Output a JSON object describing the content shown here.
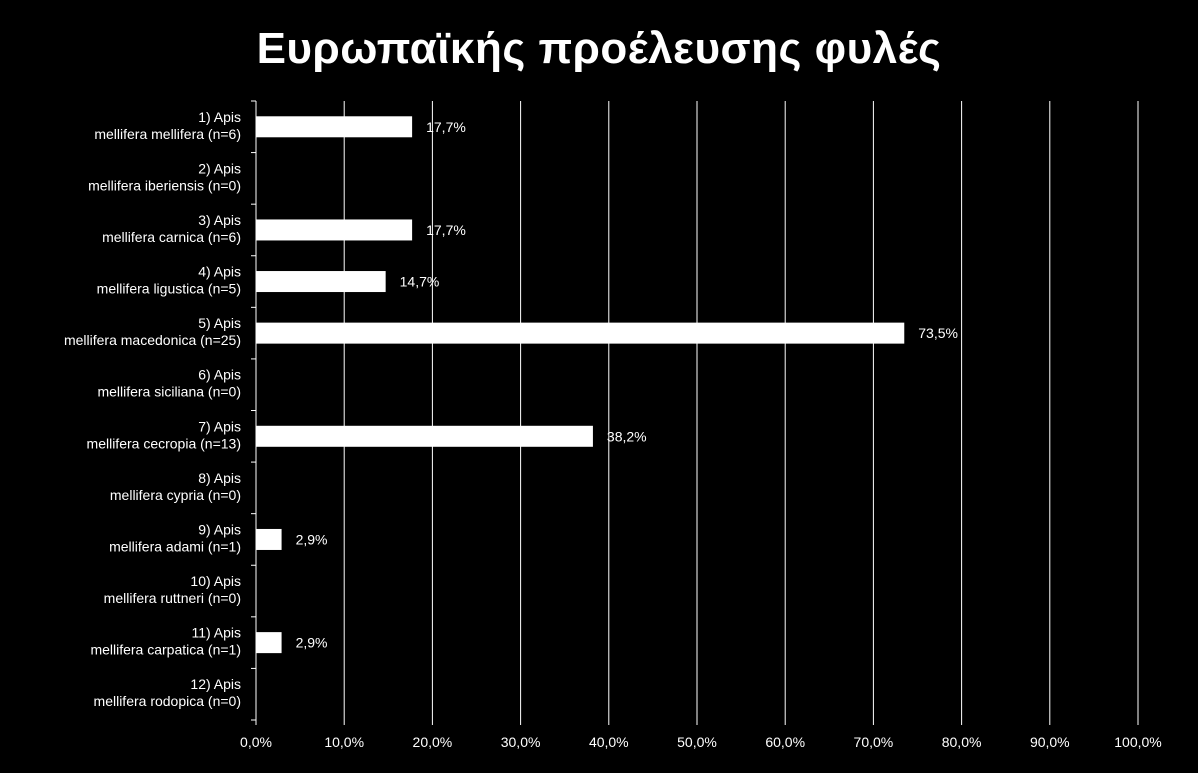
{
  "chart_data": {
    "type": "bar",
    "orientation": "horizontal",
    "title": "Ευρωπαϊκής προέλευσης φυλές",
    "xlabel": "",
    "ylabel": "",
    "xlim": [
      0,
      100
    ],
    "x_ticks": [
      0,
      10,
      20,
      30,
      40,
      50,
      60,
      70,
      80,
      90,
      100
    ],
    "x_tick_labels": [
      "0,0%",
      "10,0%",
      "20,0%",
      "30,0%",
      "40,0%",
      "50,0%",
      "60,0%",
      "70,0%",
      "80,0%",
      "90,0%",
      "100,0%"
    ],
    "grid": true,
    "legend": "none",
    "colors": {
      "background": "#000000",
      "bar": "#ffffff",
      "text": "#ffffff",
      "gridline": "#ffffff"
    },
    "categories": [
      [
        "1) Apis",
        "mellifera mellifera (n=6)"
      ],
      [
        "2) Apis",
        "mellifera iberiensis (n=0)"
      ],
      [
        "3) Apis",
        "mellifera carnica (n=6)"
      ],
      [
        "4) Apis",
        "mellifera ligustica (n=5)"
      ],
      [
        "5) Apis",
        "mellifera macedonica (n=25)"
      ],
      [
        "6) Apis",
        "mellifera siciliana (n=0)"
      ],
      [
        "7) Apis",
        "mellifera cecropia (n=13)"
      ],
      [
        "8) Apis",
        "mellifera cypria (n=0)"
      ],
      [
        "9) Apis",
        "mellifera adami  (n=1)"
      ],
      [
        "10) Apis",
        "mellifera ruttneri (n=0)"
      ],
      [
        "11) Apis",
        "mellifera carpatica (n=1)"
      ],
      [
        "12) Apis",
        "mellifera rodopica (n=0)"
      ]
    ],
    "values": [
      17.7,
      null,
      17.7,
      14.7,
      73.5,
      null,
      38.2,
      null,
      2.9,
      null,
      2.9,
      null
    ],
    "data_labels": [
      "17,7%",
      "",
      "17,7%",
      "14,7%",
      "73,5%",
      "",
      "38,2%",
      "",
      "2,9%",
      "",
      "2,9%",
      ""
    ]
  }
}
